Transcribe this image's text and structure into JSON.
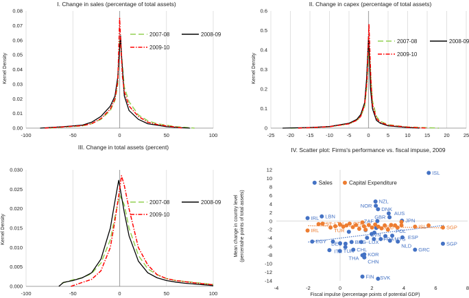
{
  "chart_data": [
    {
      "type": "line",
      "title": "I. Change in sales (percentage of total assets)",
      "ylabel": "Kernel Density",
      "xlabel": "",
      "xlim": [
        -100,
        100
      ],
      "xticks": [
        -100,
        -50,
        0,
        50,
        100
      ],
      "ylim": [
        0,
        0.08
      ],
      "yticks": [
        "0.00",
        "0.01",
        "0.02",
        "0.03",
        "0.04",
        "0.05",
        "0.06",
        "0.07",
        "0.08"
      ],
      "legend": [
        "2007-08",
        "2008-09",
        "2009-10"
      ],
      "legend_position": "top-right",
      "series": [
        {
          "name": "2007-08",
          "color": "#92d050",
          "style": "dashed",
          "x": [
            -75,
            -60,
            -40,
            -30,
            -20,
            -10,
            -5,
            -2,
            0,
            2,
            5,
            10,
            20,
            30,
            40,
            50,
            60,
            70,
            80
          ],
          "y": [
            0,
            0.0007,
            0.0015,
            0.003,
            0.006,
            0.012,
            0.019,
            0.03,
            0.06,
            0.05,
            0.028,
            0.018,
            0.009,
            0.005,
            0.003,
            0.002,
            0.001,
            0.0005,
            0
          ]
        },
        {
          "name": "2008-09",
          "color": "#000000",
          "style": "solid",
          "x": [
            -85,
            -60,
            -40,
            -30,
            -20,
            -10,
            -5,
            -2,
            0,
            1,
            2,
            5,
            10,
            20,
            30,
            40,
            50,
            60,
            70,
            75
          ],
          "y": [
            0,
            0.001,
            0.002,
            0.004,
            0.008,
            0.015,
            0.022,
            0.035,
            0.055,
            0.063,
            0.05,
            0.022,
            0.012,
            0.006,
            0.003,
            0.002,
            0.001,
            0.0005,
            0.0002,
            0
          ]
        },
        {
          "name": "2009-10",
          "color": "#ff0000",
          "style": "dashdot",
          "x": [
            -80,
            -60,
            -40,
            -30,
            -20,
            -10,
            -5,
            -2,
            0,
            1,
            3,
            5,
            10,
            20,
            30,
            40,
            50,
            60,
            68
          ],
          "y": [
            0,
            0.0008,
            0.0017,
            0.003,
            0.0065,
            0.013,
            0.02,
            0.032,
            0.075,
            0.06,
            0.035,
            0.025,
            0.015,
            0.008,
            0.004,
            0.0025,
            0.0015,
            0.0007,
            0
          ]
        }
      ]
    },
    {
      "type": "line",
      "title": "II. Change in capex (percentage of total assets)",
      "ylabel": "Kernel Density",
      "xlabel": "",
      "xlim": [
        -25,
        25
      ],
      "xticks": [
        -25,
        -20,
        -15,
        -10,
        -5,
        0,
        5,
        10,
        15,
        20,
        25
      ],
      "ylim": [
        0,
        0.6
      ],
      "yticks": [
        "0",
        "0.1",
        "0.2",
        "0.3",
        "0.4",
        "0.5",
        "0.6"
      ],
      "legend": [
        "2007-08",
        "2008-09",
        "2009-10"
      ],
      "legend_position": "top-right",
      "series": [
        {
          "name": "2007-08",
          "color": "#92d050",
          "style": "dashed",
          "x": [
            -20,
            -15,
            -10,
            -5,
            -3,
            -2,
            -1,
            -0.5,
            0.1,
            0.6,
            1,
            2,
            3,
            5,
            8,
            10,
            15,
            18
          ],
          "y": [
            0,
            0.002,
            0.007,
            0.022,
            0.04,
            0.06,
            0.11,
            0.2,
            0.42,
            0.25,
            0.14,
            0.06,
            0.035,
            0.018,
            0.01,
            0.006,
            0.002,
            0
          ]
        },
        {
          "name": "2008-09",
          "color": "#000000",
          "style": "solid",
          "x": [
            -22,
            -15,
            -10,
            -5,
            -3,
            -2,
            -1,
            -0.5,
            0,
            0.5,
            1,
            2,
            3,
            5,
            10,
            13
          ],
          "y": [
            0,
            0.003,
            0.008,
            0.025,
            0.045,
            0.07,
            0.13,
            0.25,
            0.47,
            0.2,
            0.1,
            0.04,
            0.025,
            0.012,
            0.003,
            0
          ]
        },
        {
          "name": "2009-10",
          "color": "#ff0000",
          "style": "dashdot",
          "x": [
            -18,
            -15,
            -10,
            -5,
            -3,
            -2,
            -1,
            -0.4,
            0.1,
            0.6,
            1,
            2,
            3,
            5,
            10,
            15
          ],
          "y": [
            0,
            0.002,
            0.007,
            0.022,
            0.04,
            0.06,
            0.12,
            0.24,
            0.53,
            0.25,
            0.12,
            0.05,
            0.03,
            0.015,
            0.005,
            0
          ]
        }
      ]
    },
    {
      "type": "line",
      "title": "III. Change in total assets (percent)",
      "ylabel": "Kernel Density",
      "xlabel": "",
      "xlim": [
        -100,
        100
      ],
      "xticks": [
        -100,
        -50,
        0,
        50,
        100
      ],
      "ylim": [
        0,
        0.03
      ],
      "yticks": [
        "0.000",
        "0.005",
        "0.010",
        "0.015",
        "0.020",
        "0.025",
        "0.030"
      ],
      "legend": [
        "2007-08",
        "2008-09",
        "2009-10"
      ],
      "legend_position": "top-right",
      "series": [
        {
          "name": "2007-08",
          "color": "#92d050",
          "style": "dashed",
          "x": [
            -62,
            -55,
            -50,
            -40,
            -30,
            -20,
            -10,
            -5,
            0,
            5,
            10,
            20,
            30,
            40,
            50,
            60,
            80,
            100
          ],
          "y": [
            0.0008,
            0.0013,
            0.0017,
            0.0022,
            0.0033,
            0.006,
            0.012,
            0.018,
            0.0235,
            0.021,
            0.015,
            0.008,
            0.0045,
            0.003,
            0.002,
            0.0015,
            0.001,
            0.0005
          ]
        },
        {
          "name": "2008-09",
          "color": "#000000",
          "style": "solid",
          "x": [
            -65,
            -60,
            -50,
            -40,
            -30,
            -20,
            -10,
            -5,
            -1,
            0,
            5,
            10,
            20,
            30,
            40,
            50,
            60,
            70,
            80,
            90,
            100
          ],
          "y": [
            0,
            0.001,
            0.0015,
            0.0022,
            0.0035,
            0.007,
            0.015,
            0.022,
            0.0273,
            0.026,
            0.019,
            0.013,
            0.0065,
            0.0035,
            0.0022,
            0.0015,
            0.0011,
            0.0008,
            0.0006,
            0.0004,
            0.0002
          ]
        },
        {
          "name": "2009-10",
          "color": "#ff0000",
          "style": "dashdot",
          "x": [
            -52,
            -40,
            -30,
            -20,
            -10,
            -5,
            0,
            2,
            5,
            10,
            20,
            30,
            40,
            50,
            60,
            80,
            100
          ],
          "y": [
            0,
            0.001,
            0.0018,
            0.004,
            0.01,
            0.017,
            0.025,
            0.0285,
            0.026,
            0.02,
            0.01,
            0.0055,
            0.003,
            0.002,
            0.0015,
            0.0009,
            0.0004
          ]
        }
      ]
    },
    {
      "type": "scatter",
      "title": "IV. Scatter plot: Firms's performance vs. fiscal impuse, 2009",
      "xlabel": "Fiscal impulse (percentage points of potential GDP)",
      "ylabel": [
        "Mean change in country level",
        "(percentahe points of total assets)"
      ],
      "xlim": [
        -4,
        8
      ],
      "xticks": [
        -4,
        -2,
        0,
        2,
        4,
        6,
        8
      ],
      "ylim": [
        -14,
        12
      ],
      "yticks": [
        -14,
        -12,
        -10,
        -8,
        -6,
        -4,
        -2,
        0,
        2,
        4,
        6,
        8,
        10,
        12
      ],
      "legend": [
        "Sales",
        "Capital Expenditure"
      ],
      "legend_position": "top-left",
      "series": [
        {
          "name": "Sales",
          "color": "#4472c4",
          "trend": {
            "slope": 0.459,
            "intercept": -3.98,
            "x_range": [
              -2,
              6.5
            ]
          },
          "points": [
            {
              "x": 5.56,
              "y": 11.3,
              "label": "ISL"
            },
            {
              "x": 2.22,
              "y": 4.6,
              "label": "NZL"
            },
            {
              "x": 2.24,
              "y": 3.6,
              "label": "NOR"
            },
            {
              "x": 2.38,
              "y": 2.8,
              "label": "DNK"
            },
            {
              "x": 3.05,
              "y": 1.8,
              "label": "AUS"
            },
            {
              "x": 3.1,
              "y": 0.9,
              "label": "GBR"
            },
            {
              "x": 3.88,
              "y": 0.1,
              "label": "JPN"
            },
            {
              "x": 2.34,
              "y": 0.0,
              "label": "ZAF"
            },
            {
              "x": -2.04,
              "y": 0.7,
              "label": "IRL"
            },
            {
              "x": -1.15,
              "y": 1.1,
              "label": "LBN"
            },
            {
              "x": -1.75,
              "y": -4.8,
              "label": "EGY"
            },
            {
              "x": 6.45,
              "y": -5.3,
              "label": "SGP"
            },
            {
              "x": 4.7,
              "y": -6.7,
              "label": "GRC"
            },
            {
              "x": -0.01,
              "y": -7.0,
              "label": "TUR"
            },
            {
              "x": -0.67,
              "y": -6.8,
              "label": ""
            },
            {
              "x": 0.83,
              "y": -6.7,
              "label": "CHL"
            },
            {
              "x": 0.34,
              "y": -5.3,
              "label": "DEU"
            },
            {
              "x": 0.72,
              "y": -4.9,
              "label": "BRG"
            },
            {
              "x": 0.33,
              "y": -6.1,
              "label": "ITA"
            },
            {
              "x": 1.33,
              "y": -4.9,
              "label": "LUX"
            },
            {
              "x": 1.69,
              "y": -3.9,
              "label": "SVN"
            },
            {
              "x": 2.12,
              "y": -4.2,
              "label": "FRA"
            },
            {
              "x": 2.55,
              "y": -4.2,
              "label": "MYS"
            },
            {
              "x": 3.27,
              "y": -3.4,
              "label": "POL"
            },
            {
              "x": 3.91,
              "y": -3.8,
              "label": "ESP"
            },
            {
              "x": 3.62,
              "y": -4.8,
              "label": "NLD"
            },
            {
              "x": 1.52,
              "y": -7.8,
              "label": "KOR"
            },
            {
              "x": 1.4,
              "y": -8.0,
              "label": "THA"
            },
            {
              "x": 1.52,
              "y": -8.5,
              "label": "CHN"
            },
            {
              "x": 1.4,
              "y": -13.0,
              "label": "FIN"
            },
            {
              "x": 2.38,
              "y": -13.5,
              "label": "SVK"
            },
            {
              "x": 0.55,
              "y": -2.5,
              "label": ""
            },
            {
              "x": 1.6,
              "y": -2.1,
              "label": ""
            },
            {
              "x": 2.15,
              "y": -2.7,
              "label": ""
            },
            {
              "x": 2.27,
              "y": -1.6,
              "label": ""
            },
            {
              "x": 2.84,
              "y": -3.5,
              "label": ""
            },
            {
              "x": 3.13,
              "y": -4.6,
              "label": ""
            },
            {
              "x": -0.45,
              "y": -4.8,
              "label": ""
            },
            {
              "x": 0.0,
              "y": -5.2,
              "label": ""
            },
            {
              "x": 1.98,
              "y": -3.0,
              "label": ""
            }
          ]
        },
        {
          "name": "Capital Expenditure",
          "color": "#ed7d31",
          "trend": {
            "slope": -0.06,
            "intercept": -1.2,
            "x_range": [
              -2,
              6.5
            ]
          },
          "points": [
            {
              "x": -2.04,
              "y": -2.2,
              "label": "IRL"
            },
            {
              "x": -1.35,
              "y": -0.7,
              "label": "EST"
            },
            {
              "x": -1.1,
              "y": -0.6,
              "label": "LTU"
            },
            {
              "x": -0.6,
              "y": -1.5,
              "label": "TUR"
            },
            {
              "x": -0.3,
              "y": -1.2,
              "label": ""
            },
            {
              "x": 0.0,
              "y": -0.8,
              "label": ""
            },
            {
              "x": 0.2,
              "y": -1.3,
              "label": ""
            },
            {
              "x": 0.4,
              "y": -1.0,
              "label": ""
            },
            {
              "x": 0.6,
              "y": -0.6,
              "label": "CZE"
            },
            {
              "x": 0.8,
              "y": -1.4,
              "label": ""
            },
            {
              "x": 1.0,
              "y": -0.9,
              "label": ""
            },
            {
              "x": 1.2,
              "y": -1.8,
              "label": ""
            },
            {
              "x": 1.4,
              "y": -0.3,
              "label": ""
            },
            {
              "x": 1.5,
              "y": -1.2,
              "label": ""
            },
            {
              "x": 1.6,
              "y": -2.0,
              "label": ""
            },
            {
              "x": 1.8,
              "y": -0.9,
              "label": ""
            },
            {
              "x": 2.0,
              "y": -1.5,
              "label": ""
            },
            {
              "x": 2.2,
              "y": -0.8,
              "label": ""
            },
            {
              "x": 2.4,
              "y": -1.3,
              "label": ""
            },
            {
              "x": 2.6,
              "y": -1.7,
              "label": ""
            },
            {
              "x": 2.8,
              "y": -1.0,
              "label": ""
            },
            {
              "x": 3.0,
              "y": -2.0,
              "label": ""
            },
            {
              "x": 3.2,
              "y": -0.9,
              "label": ""
            },
            {
              "x": 3.45,
              "y": -1.0,
              "label": ""
            },
            {
              "x": 3.6,
              "y": -1.5,
              "label": "GRC"
            },
            {
              "x": 3.85,
              "y": -0.2,
              "label": ""
            },
            {
              "x": 3.85,
              "y": -1.0,
              "label": ""
            },
            {
              "x": 4.7,
              "y": -1.3,
              "label": "ISL"
            },
            {
              "x": 5.55,
              "y": -1.0,
              "label": ""
            },
            {
              "x": 6.45,
              "y": -1.5,
              "label": "SGP"
            }
          ]
        }
      ]
    }
  ]
}
